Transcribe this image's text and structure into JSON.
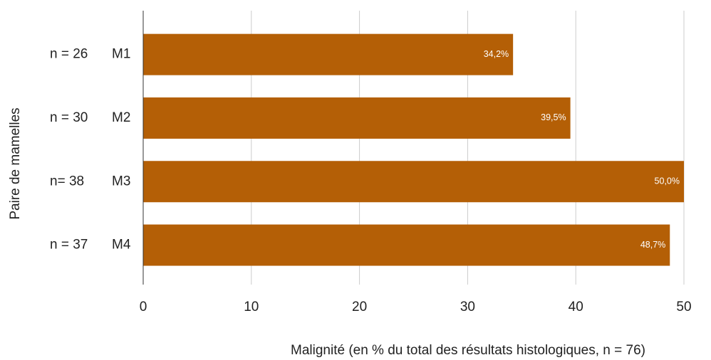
{
  "chart_data": {
    "type": "barh",
    "categories": [
      "M1",
      "M2",
      "M3",
      "M4"
    ],
    "category_notes": [
      "n = 26",
      "n = 30",
      "n= 38",
      "n = 37"
    ],
    "values": [
      34.2,
      39.5,
      50.0,
      48.7
    ],
    "value_labels": [
      "34,2%",
      "39,5%",
      "50,0%",
      "48,7%"
    ],
    "color": "#b45f06",
    "xlabel": "Malignité (en % du total des résultats histologiques, n = 76)",
    "ylabel": "Paire de mamelles",
    "xlim": [
      0,
      50
    ],
    "xticks": [
      0,
      10,
      20,
      30,
      40,
      50
    ],
    "grid": true
  }
}
